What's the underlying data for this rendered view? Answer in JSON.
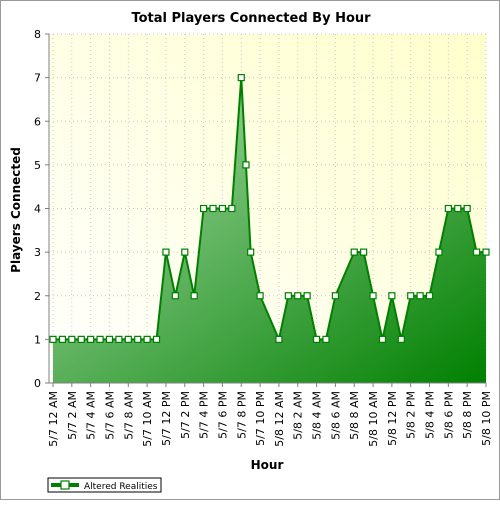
{
  "chart_data": {
    "type": "area",
    "title": "Total Players Connected By Hour",
    "xlabel": "Hour",
    "ylabel": "Players Connected",
    "ylim": [
      0,
      8
    ],
    "yticks": [
      0,
      1,
      2,
      3,
      4,
      5,
      6,
      7,
      8
    ],
    "x_ticks": [
      "5/7 12 AM",
      "5/7 2 AM",
      "5/7 4 AM",
      "5/7 6 AM",
      "5/7 8 AM",
      "5/7 10 AM",
      "5/7 12 PM",
      "5/7 2 PM",
      "5/7 4 PM",
      "5/7 6 PM",
      "5/7 8 PM",
      "5/7 10 PM",
      "5/8 12 AM",
      "5/8 2 AM",
      "5/8 4 AM",
      "5/8 6 AM",
      "5/8 8 AM",
      "5/8 10 AM",
      "5/8 12 PM",
      "5/8 2 PM",
      "5/8 4 PM",
      "5/8 6 PM",
      "5/8 8 PM",
      "5/8 10 PM"
    ],
    "x": [
      "5/7 12 AM",
      "5/7 1 AM",
      "5/7 2 AM",
      "5/7 3 AM",
      "5/7 4 AM",
      "5/7 5 AM",
      "5/7 6 AM",
      "5/7 7 AM",
      "5/7 8 AM",
      "5/7 9 AM",
      "5/7 10 AM",
      "5/7 11 AM",
      "5/7 12 PM",
      "5/7 1 PM",
      "5/7 2 PM",
      "5/7 3 PM",
      "5/7 4 PM",
      "5/7 5 PM",
      "5/7 6 PM",
      "5/7 7 PM",
      "5/7 8 PM",
      "5/7 8:30 PM",
      "5/7 9 PM",
      "5/7 10 PM",
      "5/8 12 AM",
      "5/8 1 AM",
      "5/8 2 AM",
      "5/8 3 AM",
      "5/8 4 AM",
      "5/8 5 AM",
      "5/8 6 AM",
      "5/8 8 AM",
      "5/8 9 AM",
      "5/8 10 AM",
      "5/8 11 AM",
      "5/8 12 PM",
      "5/8 1 PM",
      "5/8 2 PM",
      "5/8 3 PM",
      "5/8 4 PM",
      "5/8 5 PM",
      "5/8 6 PM",
      "5/8 7 PM",
      "5/8 8 PM",
      "5/8 9 PM",
      "5/8 10 PM"
    ],
    "x_index": [
      0,
      1,
      2,
      3,
      4,
      5,
      6,
      7,
      8,
      9,
      10,
      11,
      12,
      13,
      14,
      15,
      16,
      17,
      18,
      19,
      20,
      20.5,
      21,
      22,
      24,
      25,
      26,
      27,
      28,
      29,
      30,
      32,
      33,
      34,
      35,
      36,
      37,
      38,
      39,
      40,
      41,
      42,
      43,
      44,
      45,
      46
    ],
    "series": [
      {
        "name": "Altered Realities",
        "values": [
          1,
          1,
          1,
          1,
          1,
          1,
          1,
          1,
          1,
          1,
          1,
          1,
          3,
          2,
          3,
          2,
          4,
          4,
          4,
          4,
          7,
          5,
          3,
          2,
          1,
          2,
          2,
          2,
          1,
          1,
          2,
          3,
          3,
          2,
          1,
          2,
          1,
          2,
          2,
          2,
          3,
          4,
          4,
          4,
          3,
          3
        ],
        "color": "#008000"
      }
    ],
    "grid": true,
    "legend": "bottom-left",
    "background_gradient": [
      "#ffffff",
      "#ffffcc"
    ],
    "area_gradient": [
      "#b3e0b3",
      "#008000"
    ]
  }
}
